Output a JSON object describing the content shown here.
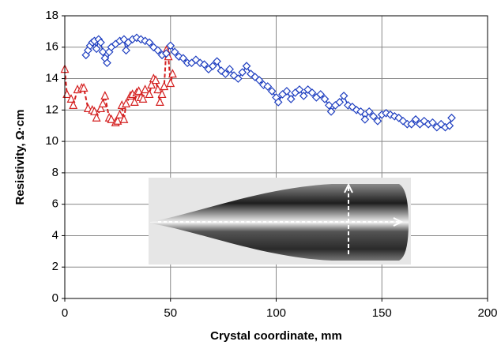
{
  "chart_data": {
    "type": "scatter",
    "x_label": "Crystal coordinate, mm",
    "y_label": "Resistivity, Ω·cm",
    "xlim": [
      0,
      200
    ],
    "xticks": [
      0,
      50,
      100,
      150,
      200
    ],
    "ylim": [
      0,
      18
    ],
    "yticks": [
      0,
      2,
      4,
      6,
      8,
      10,
      12,
      14,
      16,
      18
    ],
    "grid": true,
    "series": [
      {
        "color": "#d42020",
        "line_style": "dashed",
        "marker": "triangle",
        "x": [
          0,
          1,
          3,
          4,
          6,
          8,
          9,
          11,
          13,
          14,
          15,
          17,
          18,
          19,
          21,
          22,
          24,
          25,
          26,
          27,
          28,
          29,
          31,
          32,
          33,
          34,
          35,
          36,
          37,
          38,
          40,
          41,
          42,
          43,
          44,
          45,
          46,
          47,
          48,
          49,
          50,
          51
        ],
        "values": [
          14.6,
          13.0,
          12.7,
          12.3,
          13.3,
          13.4,
          13.4,
          12.1,
          12.0,
          11.9,
          11.5,
          12.1,
          12.4,
          12.9,
          11.5,
          11.4,
          11.2,
          11.3,
          11.7,
          12.3,
          11.4,
          12.4,
          12.9,
          13.0,
          12.5,
          13.1,
          13.2,
          12.8,
          12.7,
          13.3,
          13.0,
          13.6,
          14.0,
          13.9,
          13.3,
          12.5,
          13.0,
          13.5,
          15.8,
          15.4,
          13.7,
          14.3
        ]
      },
      {
        "color": "#1f3fc0",
        "line_style": "solid",
        "marker": "diamond",
        "x": [
          10,
          11,
          12,
          13,
          14,
          15,
          16,
          17,
          18,
          19,
          20,
          21,
          22,
          24,
          26,
          28,
          29,
          30,
          32,
          34,
          36,
          38,
          40,
          42,
          44,
          46,
          48,
          50,
          52,
          54,
          56,
          58,
          60,
          62,
          64,
          66,
          68,
          70,
          72,
          74,
          76,
          78,
          80,
          82,
          84,
          86,
          88,
          90,
          92,
          94,
          96,
          98,
          100,
          101,
          103,
          105,
          107,
          109,
          111,
          113,
          115,
          117,
          119,
          121,
          123,
          125,
          126,
          128,
          130,
          132,
          134,
          136,
          138,
          140,
          142,
          144,
          146,
          148,
          150,
          152,
          154,
          156,
          158,
          160,
          162,
          164,
          166,
          168,
          170,
          172,
          174,
          176,
          178,
          180,
          182,
          183
        ],
        "values": [
          15.5,
          15.8,
          16.1,
          16.3,
          16.4,
          15.9,
          16.5,
          16.3,
          15.7,
          15.3,
          15.0,
          15.7,
          16.0,
          16.2,
          16.4,
          16.5,
          15.8,
          16.3,
          16.5,
          16.6,
          16.5,
          16.4,
          16.3,
          16.0,
          15.8,
          15.5,
          15.6,
          16.1,
          15.7,
          15.4,
          15.3,
          15.0,
          15.0,
          15.2,
          15.0,
          14.9,
          14.6,
          14.8,
          15.1,
          14.5,
          14.3,
          14.6,
          14.2,
          14.0,
          14.4,
          14.8,
          14.3,
          14.1,
          13.9,
          13.6,
          13.5,
          13.2,
          12.8,
          12.5,
          13.0,
          13.2,
          12.7,
          13.1,
          13.3,
          12.9,
          13.3,
          13.1,
          12.8,
          13.0,
          12.7,
          12.3,
          11.9,
          12.3,
          12.5,
          12.9,
          12.3,
          12.2,
          12.0,
          11.9,
          11.4,
          11.9,
          11.6,
          11.3,
          11.7,
          11.8,
          11.7,
          11.6,
          11.5,
          11.3,
          11.1,
          11.1,
          11.4,
          11.1,
          11.3,
          11.1,
          11.2,
          10.9,
          11.1,
          10.9,
          11.0,
          11.5
        ]
      }
    ]
  }
}
